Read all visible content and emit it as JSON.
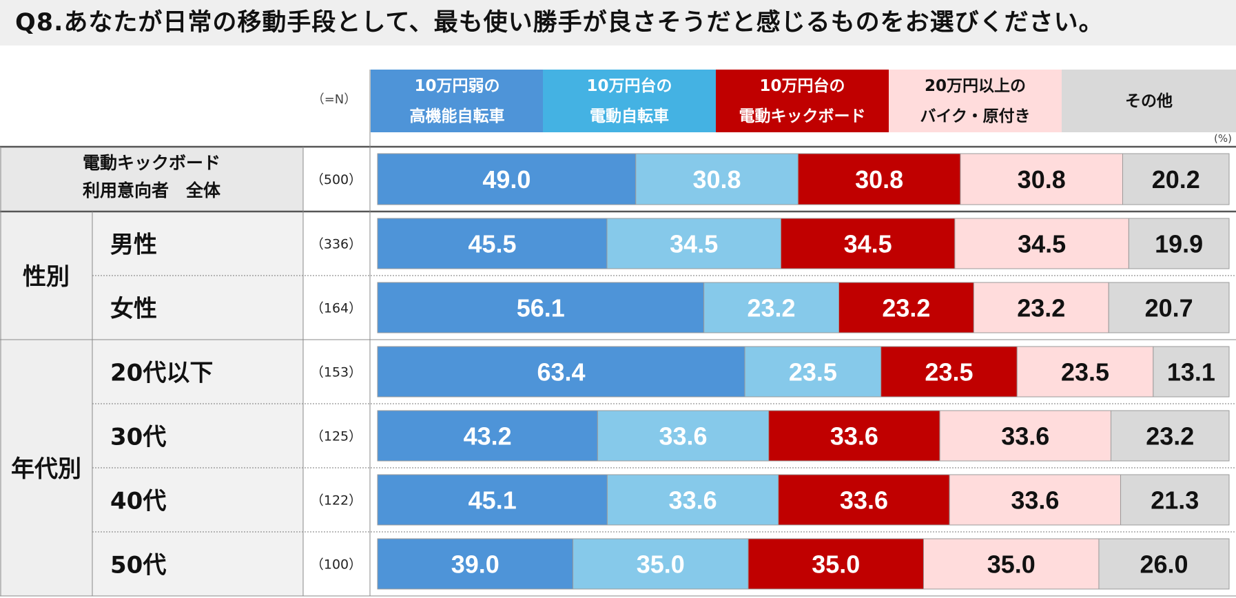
{
  "title": "Q8.あなたが日常の移動手段として、最も使い勝手が良さそうだと感じるものをお選びください。",
  "n_header": "（=N）",
  "unit": "(%)",
  "colors": {
    "title_bg": "#efefef",
    "label_bg": "#f2f2f2",
    "total_label_bg": "#e8e8e8",
    "text_dark": "#111111",
    "text_light": "#ffffff"
  },
  "chart_data": {
    "type": "bar",
    "stacked": true,
    "orientation": "horizontal",
    "title": "Q8.あなたが日常の移動手段として、最も使い勝手が良さそうだと感じるものをお選びください。",
    "unit": "%",
    "series": [
      {
        "name": "10万円弱の高機能自転車",
        "legend_lines": [
          "10万円弱の",
          "高機能自転車"
        ],
        "color": "#4e94d8",
        "text_color": "#ffffff",
        "values": [
          49.0,
          45.5,
          56.1,
          63.4,
          43.2,
          45.1,
          39.0
        ]
      },
      {
        "name": "10万円台の電動自転車",
        "legend_lines": [
          "10万円台の",
          "電動自転車"
        ],
        "color": "#86c9ea",
        "legend_color": "#44b2e3",
        "text_color": "#ffffff",
        "values": [
          30.8,
          34.5,
          23.2,
          23.5,
          33.6,
          33.6,
          35.0
        ]
      },
      {
        "name": "10万円台の電動キックボード",
        "legend_lines": [
          "10万円台の",
          "電動キックボード"
        ],
        "color": "#c00000",
        "text_color": "#ffffff",
        "values": [
          30.8,
          34.5,
          23.2,
          23.5,
          33.6,
          33.6,
          35.0
        ]
      },
      {
        "name": "20万円以上のバイク・原付き",
        "legend_lines": [
          "20万円以上の",
          "バイク・原付き"
        ],
        "color": "#ffdcdc",
        "text_color": "#111111",
        "values": [
          30.8,
          34.5,
          23.2,
          23.5,
          33.6,
          33.6,
          35.0
        ]
      },
      {
        "name": "その他",
        "legend_lines": [
          "その他"
        ],
        "color": "#d9d9d9",
        "text_color": "#111111",
        "values": [
          20.2,
          19.9,
          20.7,
          13.1,
          23.2,
          21.3,
          26.0
        ]
      }
    ],
    "rows": [
      {
        "group": "",
        "label_lines": [
          "電動キックボード",
          "利用意向者　全体"
        ],
        "n": "（500）",
        "total": true
      },
      {
        "group": "性別",
        "label_lines": [
          "男性"
        ],
        "n": "（336）"
      },
      {
        "group": "性別",
        "label_lines": [
          "女性"
        ],
        "n": "（164）"
      },
      {
        "group": "年代別",
        "label_lines": [
          "20代以下"
        ],
        "n": "（153）"
      },
      {
        "group": "年代別",
        "label_lines": [
          "30代"
        ],
        "n": "（125）"
      },
      {
        "group": "年代別",
        "label_lines": [
          "40代"
        ],
        "n": "（122）"
      },
      {
        "group": "年代別",
        "label_lines": [
          "50代"
        ],
        "n": "（100）"
      }
    ],
    "groups": [
      "性別",
      "年代別"
    ]
  }
}
